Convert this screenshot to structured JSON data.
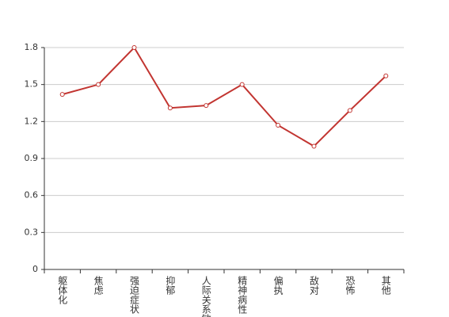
{
  "chart_data": {
    "type": "line",
    "categories": [
      "躯体化",
      "焦虑",
      "强迫症状",
      "抑郁",
      "人际关系敏感",
      "精神病性",
      "偏执",
      "敌对",
      "恐怖",
      "其他"
    ],
    "series": [
      {
        "color": "#c23531",
        "values": [
          1.42,
          1.5,
          1.8,
          1.31,
          1.33,
          1.5,
          1.17,
          1.0,
          1.29,
          1.57
        ]
      }
    ],
    "ylim": [
      0,
      1.8
    ],
    "yticks": [
      0,
      0.3,
      0.6,
      0.9,
      1.2,
      1.5,
      1.8
    ],
    "grid": true
  }
}
